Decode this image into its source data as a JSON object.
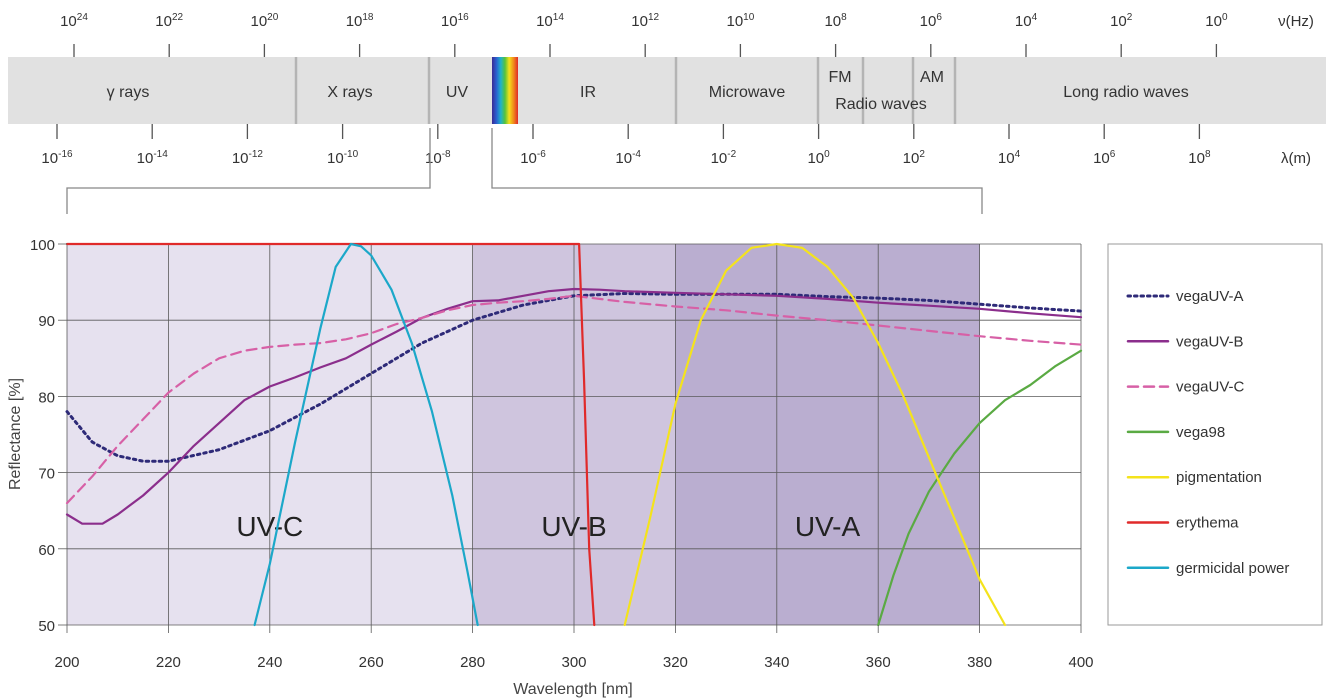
{
  "spectrum": {
    "freq_unit": "ν(Hz)",
    "wl_unit": "λ(m)",
    "freq_ticks": [
      {
        "base": "10",
        "exp": "24"
      },
      {
        "base": "10",
        "exp": "22"
      },
      {
        "base": "10",
        "exp": "20"
      },
      {
        "base": "10",
        "exp": "18"
      },
      {
        "base": "10",
        "exp": "16"
      },
      {
        "base": "10",
        "exp": "14"
      },
      {
        "base": "10",
        "exp": "12"
      },
      {
        "base": "10",
        "exp": "10"
      },
      {
        "base": "10",
        "exp": "8"
      },
      {
        "base": "10",
        "exp": "6"
      },
      {
        "base": "10",
        "exp": "4"
      },
      {
        "base": "10",
        "exp": "2"
      },
      {
        "base": "10",
        "exp": "0"
      }
    ],
    "wl_ticks": [
      {
        "base": "10",
        "exp": "-16"
      },
      {
        "base": "10",
        "exp": "-14"
      },
      {
        "base": "10",
        "exp": "-12"
      },
      {
        "base": "10",
        "exp": "-10"
      },
      {
        "base": "10",
        "exp": "-8"
      },
      {
        "base": "10",
        "exp": "-6"
      },
      {
        "base": "10",
        "exp": "-4"
      },
      {
        "base": "10",
        "exp": "-2"
      },
      {
        "base": "10",
        "exp": "0"
      },
      {
        "base": "10",
        "exp": "2"
      },
      {
        "base": "10",
        "exp": "4"
      },
      {
        "base": "10",
        "exp": "6"
      },
      {
        "base": "10",
        "exp": "8"
      }
    ],
    "bands": [
      "γ rays",
      "X rays",
      "UV",
      "IR",
      "Microwave",
      "FM",
      "AM",
      "Radio waves",
      "Long radio waves"
    ]
  },
  "chart_data": {
    "type": "line",
    "xlabel": "Wavelength [nm]",
    "ylabel": "Reflectance [%]",
    "xlim": [
      200,
      400
    ],
    "ylim": [
      50,
      100
    ],
    "xticks": [
      200,
      220,
      240,
      260,
      280,
      300,
      320,
      340,
      360,
      380,
      400
    ],
    "yticks": [
      50,
      60,
      70,
      80,
      90,
      100
    ],
    "grid": true,
    "legend_position": "right",
    "regions": [
      {
        "label": "UV-C",
        "from": 200,
        "to": 280,
        "color": "#e6e1ef"
      },
      {
        "label": "UV-B",
        "from": 280,
        "to": 320,
        "color": "#cfc5de"
      },
      {
        "label": "UV-A",
        "from": 320,
        "to": 380,
        "color": "#baaed0"
      }
    ],
    "series": [
      {
        "name": "vegaUV-A",
        "color": "#2e2a78",
        "style": "dotted",
        "x": [
          200,
          205,
          210,
          215,
          220,
          230,
          240,
          250,
          260,
          270,
          280,
          290,
          300,
          310,
          320,
          330,
          340,
          350,
          360,
          370,
          380,
          390,
          400
        ],
        "y": [
          78,
          74,
          72.2,
          71.5,
          71.5,
          73,
          75.5,
          79,
          83,
          87,
          90,
          92,
          93.2,
          93.5,
          93.4,
          93.4,
          93.4,
          93.1,
          92.9,
          92.6,
          92.1,
          91.6,
          91.2
        ]
      },
      {
        "name": "vegaUV-B",
        "color": "#8b2e8c",
        "style": "solid",
        "x": [
          200,
          203,
          207,
          210,
          215,
          220,
          225,
          230,
          235,
          240,
          245,
          250,
          255,
          260,
          265,
          270,
          275,
          280,
          285,
          290,
          295,
          300,
          305,
          310,
          320,
          330,
          340,
          350,
          360,
          370,
          380,
          390,
          400
        ],
        "y": [
          64.5,
          63.3,
          63.3,
          64.5,
          67,
          70,
          73.5,
          76.5,
          79.5,
          81.3,
          82.5,
          83.8,
          85,
          86.8,
          88.5,
          90.3,
          91.5,
          92.5,
          92.6,
          93.2,
          93.8,
          94.1,
          94,
          93.8,
          93.6,
          93.4,
          93.2,
          92.8,
          92.3,
          91.9,
          91.5,
          90.9,
          90.4
        ]
      },
      {
        "name": "vegaUV-C",
        "color": "#d760a6",
        "style": "dashed",
        "x": [
          200,
          205,
          210,
          215,
          220,
          225,
          230,
          235,
          240,
          245,
          250,
          255,
          260,
          265,
          270,
          275,
          280,
          285,
          290,
          295,
          300,
          305,
          310,
          320,
          330,
          340,
          350,
          360,
          370,
          380,
          390,
          400
        ],
        "y": [
          66,
          69.5,
          73.5,
          77,
          80.5,
          83,
          85,
          86,
          86.5,
          86.8,
          87,
          87.5,
          88.3,
          89.5,
          90.3,
          91.3,
          92,
          92.3,
          92.5,
          92.8,
          93.2,
          92.8,
          92.4,
          91.8,
          91.3,
          90.6,
          90,
          89.3,
          88.6,
          87.9,
          87.3,
          86.8
        ]
      },
      {
        "name": "vega98",
        "color": "#5aaa43",
        "style": "solid",
        "x": [
          360,
          363,
          366,
          370,
          375,
          380,
          385,
          390,
          395,
          400
        ],
        "y": [
          50,
          56.5,
          62,
          67.5,
          72.5,
          76.5,
          79.5,
          81.5,
          84,
          86
        ]
      },
      {
        "name": "pigmentation",
        "color": "#f4e31c",
        "style": "solid",
        "x": [
          310,
          315,
          320,
          325,
          330,
          335,
          340,
          345,
          350,
          355,
          360,
          365,
          370,
          375,
          380,
          385
        ],
        "y": [
          50,
          64,
          79,
          90,
          96.5,
          99.5,
          100,
          99.5,
          97,
          93,
          87,
          80,
          72,
          64,
          56,
          49
        ]
      },
      {
        "name": "erythema",
        "color": "#e02a2a",
        "style": "solid",
        "x": [
          200,
          301,
          302,
          303,
          304
        ],
        "y": [
          100,
          100,
          82,
          60,
          50
        ]
      },
      {
        "name": "germicidal power",
        "color": "#1ca8c9",
        "style": "solid",
        "x": [
          237,
          240,
          245,
          250,
          253,
          256,
          258,
          260,
          264,
          268,
          272,
          276,
          279,
          281
        ],
        "y": [
          50,
          58,
          74,
          89,
          97,
          100,
          99.7,
          98.5,
          94,
          87,
          78,
          67,
          57,
          50
        ]
      }
    ]
  }
}
